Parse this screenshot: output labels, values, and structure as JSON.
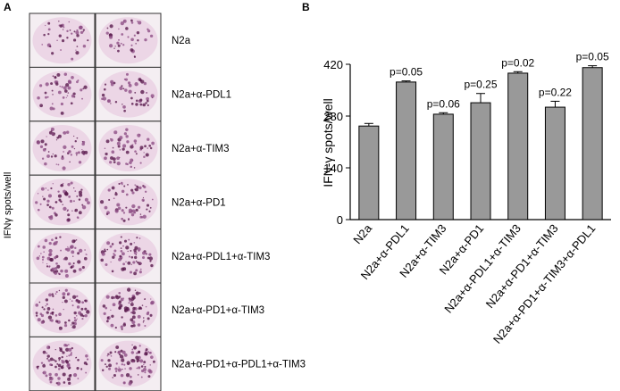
{
  "panel_a": {
    "label": "A",
    "y_label": "IFNγ spots/well",
    "rows": [
      "N2a",
      "N2a+α-PDL1",
      "N2a+α-TIM3",
      "N2a+α-PD1",
      "N2a+α-PDL1+α-TIM3",
      "N2a+α-PD1+α-TIM3",
      "N2a+α-PD1+α-PDL1+α-TIM3"
    ]
  },
  "chart_data": {
    "type": "bar",
    "label": "B",
    "y_label": "IFN-γ spots/well",
    "categories": [
      "N2a",
      "N2a+α-PDL1",
      "N2a+α-TIM3",
      "N2a+α-PD1",
      "N2a+α-PDL1+α-TIM3",
      "N2a+α-PD1+α-TIM3",
      "N2a+α-PD1+α-TIM3+α-PDL1"
    ],
    "values": [
      253,
      372,
      285,
      316,
      396,
      304,
      411
    ],
    "errors": [
      7,
      3,
      4,
      25,
      4,
      16,
      5
    ],
    "annotations": [
      null,
      "p=0.05",
      "p=0.06",
      "p=0.25",
      "p=0.02",
      "p=0.22",
      "p=0.05"
    ],
    "color": "#999999",
    "ylim": [
      0,
      420
    ],
    "yticks": [
      0,
      140,
      280,
      420
    ]
  }
}
